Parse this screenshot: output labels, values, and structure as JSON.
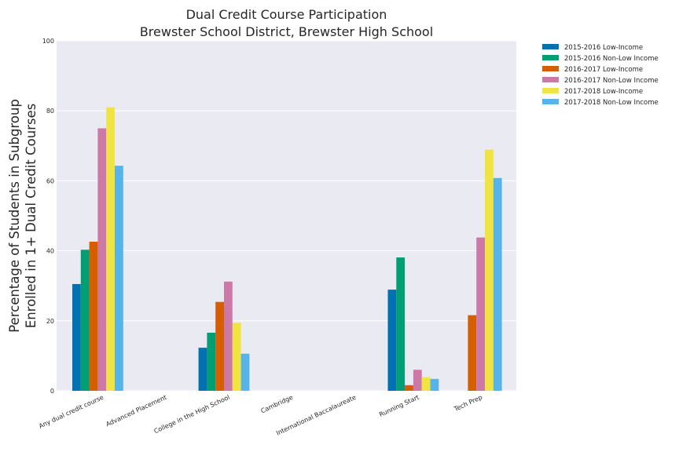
{
  "chart_data": {
    "type": "bar",
    "title": [
      "Dual Credit Course Participation",
      "Brewster School District, Brewster High School"
    ],
    "xlabel": "",
    "ylabel": [
      "Percentage of Students in Subgroup",
      "Enrolled in 1+ Dual Credit Courses"
    ],
    "ylim": [
      0,
      100
    ],
    "yticks": [
      "0",
      "20",
      "40",
      "60",
      "80",
      "100"
    ],
    "grid": true,
    "legend_position": "outside-top-right",
    "categories": [
      "Any dual credit course",
      "Advanced Placement",
      "College in the High School",
      "Cambridge",
      "International Baccalaureate",
      "Running Start",
      "Tech Prep"
    ],
    "series": [
      {
        "name": "2015-2016 Low-Income",
        "color": "#0072b2",
        "values": [
          30.5,
          null,
          12.3,
          null,
          null,
          28.9,
          null
        ]
      },
      {
        "name": "2015-2016 Non-Low Income",
        "color": "#009e73",
        "values": [
          40.3,
          null,
          16.6,
          null,
          null,
          38.1,
          null
        ]
      },
      {
        "name": "2016-2017 Low-Income",
        "color": "#d55e00",
        "values": [
          42.6,
          null,
          25.4,
          null,
          null,
          1.6,
          21.6
        ]
      },
      {
        "name": "2016-2017 Non-Low Income",
        "color": "#cc79a7",
        "values": [
          75.0,
          null,
          31.2,
          null,
          null,
          6.0,
          43.8
        ]
      },
      {
        "name": "2017-2018 Low-Income",
        "color": "#f0e442",
        "values": [
          81.0,
          null,
          19.4,
          null,
          null,
          3.9,
          68.9
        ]
      },
      {
        "name": "2017-2018 Non-Low Income",
        "color": "#56b4e9",
        "values": [
          64.3,
          null,
          10.6,
          null,
          null,
          3.4,
          60.8
        ]
      }
    ]
  }
}
